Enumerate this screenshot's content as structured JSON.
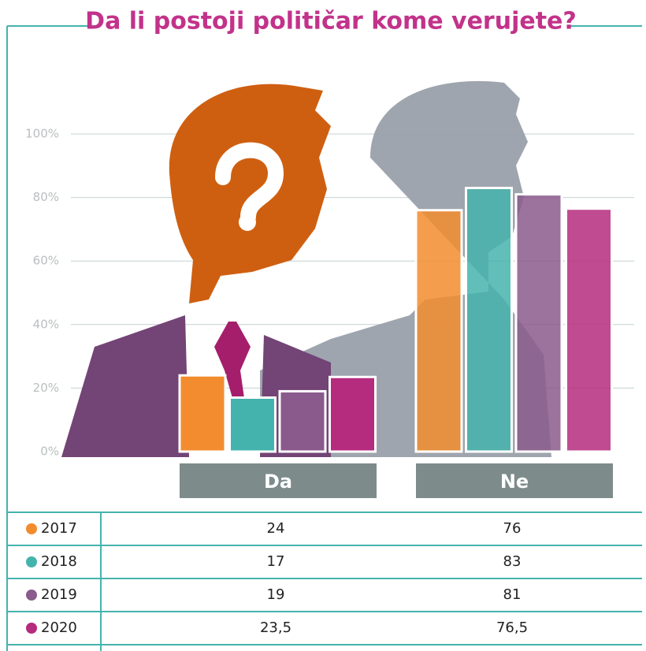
{
  "chart_data": {
    "type": "bar",
    "title": "Da li postoji političar kome verujete?",
    "categories": [
      "Da",
      "Ne"
    ],
    "series": [
      {
        "name": "2017",
        "color": "#f28c2e",
        "values": [
          24,
          76
        ]
      },
      {
        "name": "2018",
        "color": "#45b3ad",
        "values": [
          17,
          83
        ]
      },
      {
        "name": "2019",
        "color": "#8a5a8c",
        "values": [
          19,
          81
        ]
      },
      {
        "name": "2020",
        "color": "#b52b7e",
        "values": [
          23.5,
          76.5
        ],
        "value_labels": [
          "23,5",
          "76,5"
        ]
      }
    ],
    "ylim": [
      0,
      100
    ],
    "yticks": [
      {
        "value": 0,
        "label": "0%"
      },
      {
        "value": 20,
        "label": "20%"
      },
      {
        "value": 40,
        "label": "40%"
      },
      {
        "value": 60,
        "label": "60%"
      },
      {
        "value": 80,
        "label": "80%"
      },
      {
        "value": 100,
        "label": "100%"
      }
    ],
    "grid": true
  }
}
